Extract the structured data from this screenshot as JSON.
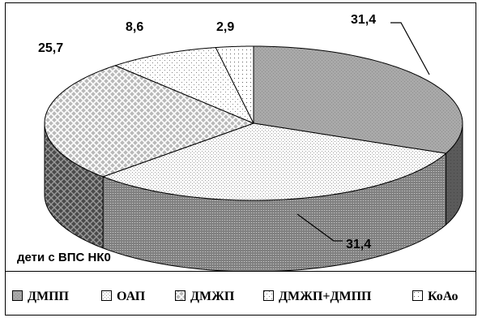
{
  "chart_data": {
    "type": "pie",
    "subtype": "3d",
    "caption": "дети с ВПС НК0",
    "categories": [
      "ДМПП",
      "ОАП",
      "ДМЖП",
      "ДМЖП+ДМПП",
      "КоАо"
    ],
    "values": [
      31.4,
      31.4,
      25.7,
      8.6,
      2.9
    ],
    "data_labels": [
      "31,4",
      "31,4",
      "25,7",
      "8,6",
      "2,9"
    ],
    "legend_position": "bottom",
    "colors": {
      "ДМПП": "#a6a6a6",
      "ОАП": "#f4f4f4",
      "ДМЖП": "#c8c8c8",
      "ДМЖП+ДМПП": "#ffffff",
      "КоАо": "#ffffff"
    }
  }
}
